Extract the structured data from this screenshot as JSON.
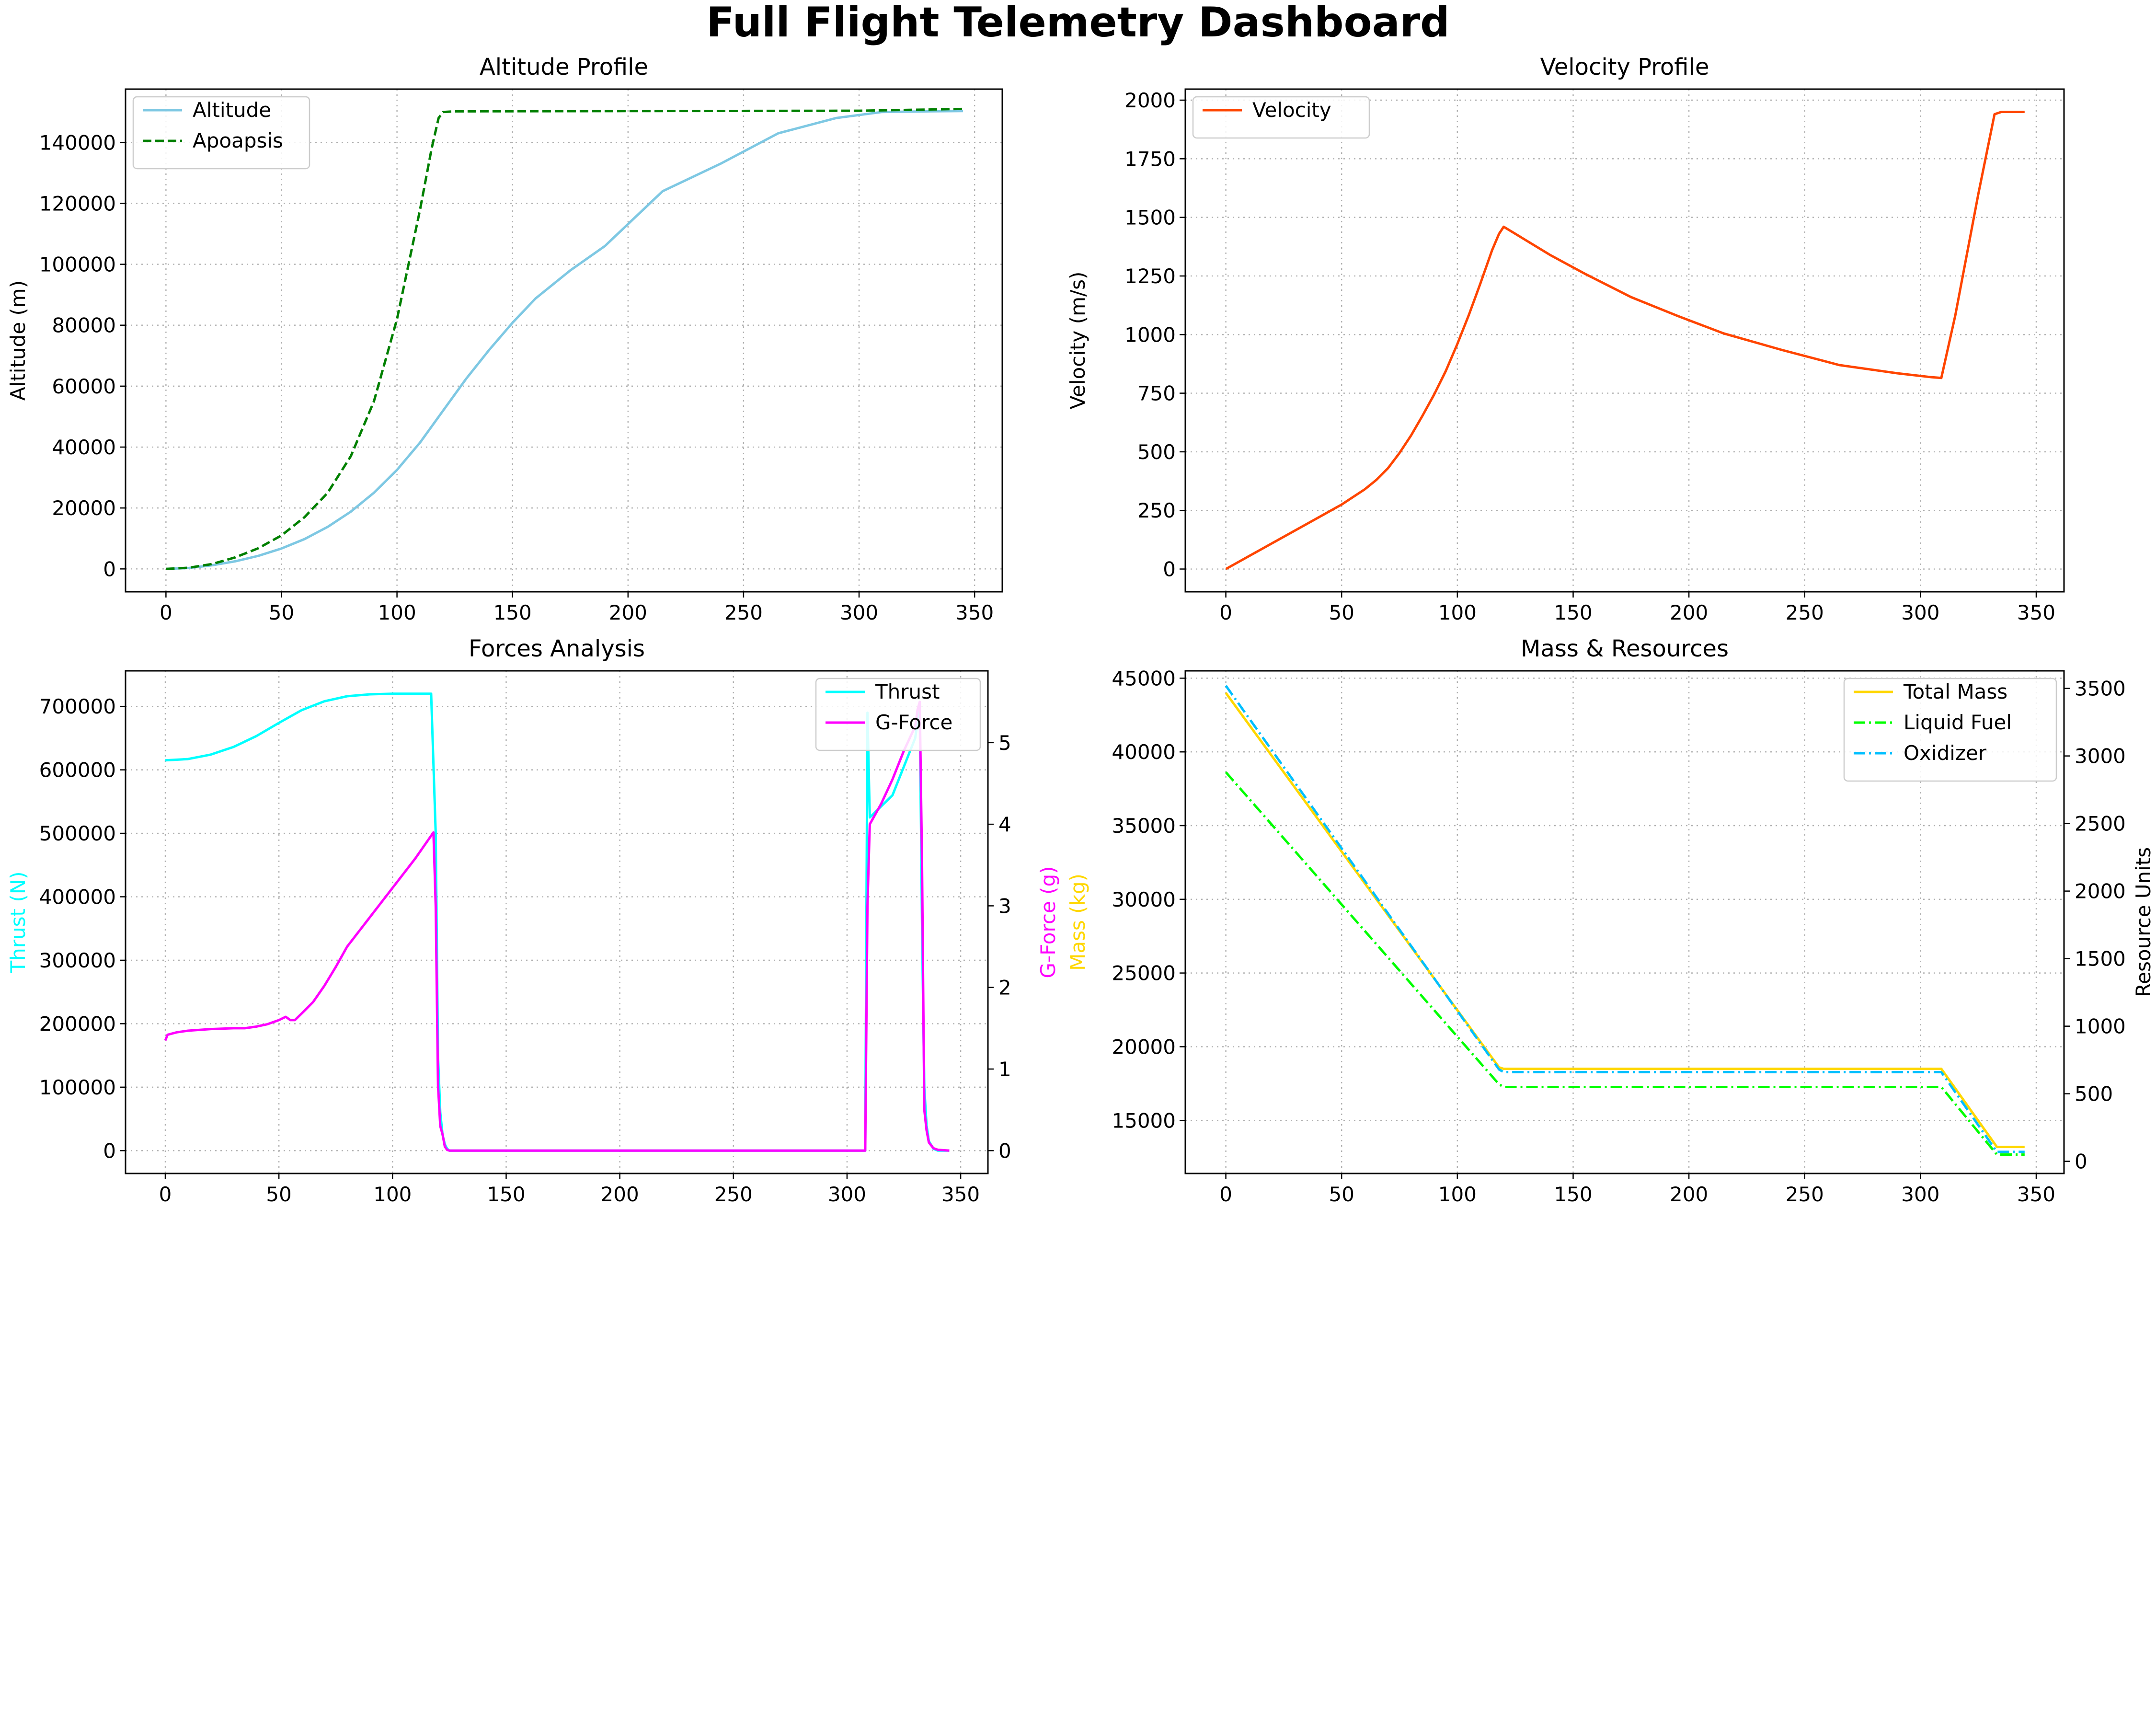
{
  "title": "Full Flight Telemetry Dashboard",
  "chart_data": [
    {
      "title": "Altitude Profile",
      "type": "line",
      "xlabel": "",
      "ylabel": "Altitude (m)",
      "xlim": [
        -17.5,
        362
      ],
      "ylim": [
        -7500,
        157500
      ],
      "xticks": [
        0,
        50,
        100,
        150,
        200,
        250,
        300,
        350
      ],
      "yticks": [
        0,
        20000,
        40000,
        60000,
        80000,
        100000,
        120000,
        140000
      ],
      "grid": true,
      "legend": "top-left",
      "series": [
        {
          "name": "Altitude",
          "color": "#7ec8e3",
          "dash": "solid",
          "x": [
            0,
            10,
            20,
            30,
            40,
            50,
            60,
            70,
            80,
            90,
            100,
            110,
            120,
            130,
            140,
            150,
            160,
            175,
            190,
            215,
            240,
            265,
            290,
            310,
            330,
            345
          ],
          "y": [
            0,
            300,
            1200,
            2500,
            4300,
            6700,
            9800,
            13800,
            18800,
            25000,
            32500,
            41500,
            52000,
            62500,
            72000,
            80800,
            88800,
            98000,
            106000,
            124000,
            133000,
            143000,
            148000,
            150000,
            150200,
            150300
          ]
        },
        {
          "name": "Apoapsis",
          "color": "#008000",
          "dash": "dashed",
          "x": [
            0,
            10,
            20,
            30,
            40,
            50,
            60,
            70,
            80,
            90,
            100,
            105,
            110,
            115,
            118,
            120,
            125,
            200,
            300,
            345
          ],
          "y": [
            0,
            400,
            1600,
            3800,
            6800,
            11000,
            17000,
            25000,
            37000,
            55000,
            82000,
            100000,
            118000,
            138000,
            148000,
            150000,
            150200,
            150300,
            150400,
            151000
          ]
        }
      ]
    },
    {
      "title": "Velocity Profile",
      "type": "line",
      "xlabel": "",
      "ylabel": "Velocity (m/s)",
      "xlim": [
        -17.5,
        362
      ],
      "ylim": [
        -97,
        2047
      ],
      "xticks": [
        0,
        50,
        100,
        150,
        200,
        250,
        300,
        350
      ],
      "yticks": [
        0,
        250,
        500,
        750,
        1000,
        1250,
        1500,
        1750,
        2000
      ],
      "grid": true,
      "legend": "top-left",
      "series": [
        {
          "name": "Velocity",
          "color": "#ff4500",
          "dash": "solid",
          "x": [
            0,
            10,
            20,
            30,
            40,
            50,
            60,
            65,
            70,
            75,
            80,
            85,
            90,
            95,
            100,
            105,
            110,
            115,
            118,
            120,
            125,
            140,
            155,
            175,
            195,
            215,
            240,
            265,
            290,
            305,
            309,
            315,
            325,
            332,
            335,
            345
          ],
          "y": [
            0,
            55,
            110,
            165,
            220,
            275,
            340,
            380,
            430,
            495,
            570,
            655,
            745,
            845,
            960,
            1085,
            1220,
            1360,
            1430,
            1460,
            1430,
            1340,
            1260,
            1160,
            1080,
            1005,
            935,
            870,
            835,
            818,
            815,
            1080,
            1600,
            1940,
            1950,
            1950
          ]
        }
      ]
    },
    {
      "title": "Forces Analysis",
      "type": "line",
      "xlabel": "",
      "ylabel": "Thrust (N)",
      "ylabel_right": "G-Force (g)",
      "xlim": [
        -17.5,
        362
      ],
      "ylim": [
        -36000,
        756000
      ],
      "ylim_right": [
        -0.28,
        5.88
      ],
      "xticks": [
        0,
        50,
        100,
        150,
        200,
        250,
        300,
        350
      ],
      "yticks": [
        0,
        100000,
        200000,
        300000,
        400000,
        500000,
        600000,
        700000
      ],
      "yticks_right": [
        0,
        1,
        2,
        3,
        4,
        5
      ],
      "grid": true,
      "legend": "top-right",
      "series": [
        {
          "name": "Thrust",
          "color": "#00ffff",
          "dash": "solid",
          "axis": "left",
          "x": [
            0,
            10,
            20,
            30,
            40,
            50,
            60,
            70,
            80,
            90,
            100,
            110,
            117,
            119,
            120,
            121,
            122,
            123,
            124,
            125,
            200,
            308,
            309,
            310,
            320,
            330,
            332,
            333,
            334,
            335,
            336,
            338,
            340,
            345
          ],
          "y": [
            615000,
            617000,
            624000,
            636000,
            653000,
            674000,
            694000,
            708000,
            716000,
            719000,
            720000,
            720000,
            720000,
            500000,
            150000,
            60000,
            25000,
            10000,
            3000,
            0,
            0,
            0,
            690000,
            525000,
            560000,
            650000,
            700000,
            350000,
            100000,
            40000,
            15000,
            3000,
            0,
            0
          ]
        },
        {
          "name": "G-Force",
          "color": "#ff00ff",
          "dash": "solid",
          "axis": "right",
          "x": [
            0,
            1,
            5,
            10,
            20,
            30,
            35,
            40,
            45,
            50,
            53,
            55,
            57,
            60,
            65,
            70,
            75,
            80,
            90,
            100,
            110,
            118,
            119,
            120,
            121,
            122,
            123,
            124,
            125,
            200,
            308,
            309,
            310,
            315,
            320,
            325,
            330,
            331,
            332,
            333,
            334,
            335,
            336,
            338,
            340,
            345
          ],
          "y": [
            1.35,
            1.42,
            1.45,
            1.47,
            1.49,
            1.5,
            1.5,
            1.52,
            1.55,
            1.6,
            1.64,
            1.6,
            1.6,
            1.68,
            1.82,
            2.02,
            2.25,
            2.5,
            2.86,
            3.22,
            3.58,
            3.9,
            3.0,
            0.8,
            0.3,
            0.2,
            0.05,
            0.01,
            0,
            0,
            0,
            3.0,
            4.0,
            4.25,
            4.55,
            4.9,
            5.2,
            5.4,
            5.5,
            3.5,
            0.5,
            0.25,
            0.1,
            0.03,
            0.01,
            0
          ]
        }
      ]
    },
    {
      "title": "Mass & Resources",
      "type": "line",
      "xlabel": "",
      "ylabel": "Mass (kg)",
      "ylabel_right": "Resource Units",
      "xlim": [
        -17.5,
        362
      ],
      "ylim": [
        11400,
        45500
      ],
      "ylim_right": [
        -90,
        3630
      ],
      "xticks": [
        0,
        50,
        100,
        150,
        200,
        250,
        300,
        350
      ],
      "yticks": [
        15000,
        20000,
        25000,
        30000,
        35000,
        40000,
        45000
      ],
      "yticks_right": [
        0,
        500,
        1000,
        1500,
        2000,
        2500,
        3000,
        3500
      ],
      "grid": true,
      "legend": "top-right",
      "series": [
        {
          "name": "Total Mass",
          "color": "#ffd700",
          "dash": "solid",
          "axis": "left",
          "x": [
            0,
            118,
            120,
            309,
            333,
            345
          ],
          "y": [
            44000,
            18600,
            18500,
            18500,
            13200,
            13200
          ]
        },
        {
          "name": "Liquid Fuel",
          "color": "#00ff00",
          "dash": "dashdot",
          "axis": "right",
          "x": [
            0,
            118,
            120,
            309,
            333,
            345
          ],
          "y": [
            2880,
            570,
            550,
            550,
            50,
            50
          ]
        },
        {
          "name": "Oxidizer",
          "color": "#00bfff",
          "dash": "dashdot",
          "axis": "right",
          "x": [
            0,
            118,
            120,
            309,
            333,
            345
          ],
          "y": [
            3520,
            680,
            660,
            660,
            70,
            70
          ]
        }
      ]
    }
  ]
}
